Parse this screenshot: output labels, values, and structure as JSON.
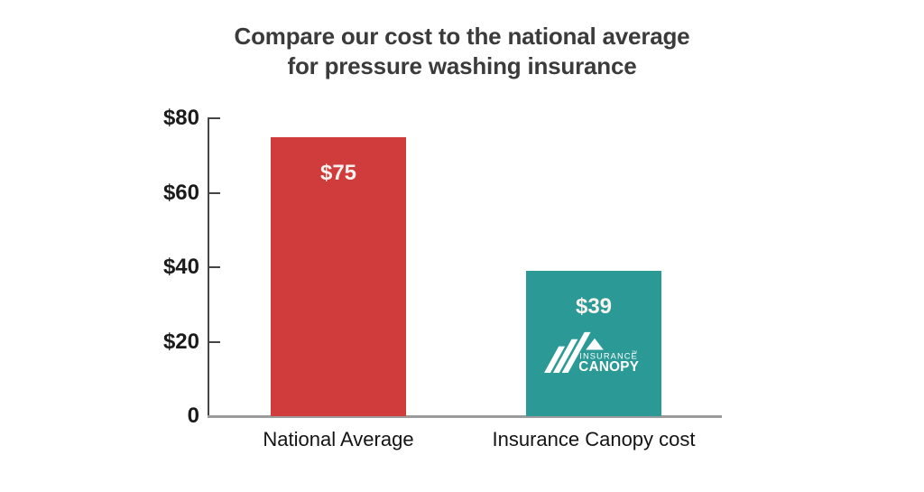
{
  "header": {
    "title_line1": "Compare our cost to the national average",
    "title_line2": "for pressure washing insurance"
  },
  "chart_data": {
    "type": "bar",
    "title": "Compare our cost to the national average for pressure washing insurance",
    "categories": [
      "National Average",
      "Insurance Canopy cost"
    ],
    "values": [
      75,
      39
    ],
    "labels": [
      "$75",
      "$39"
    ],
    "bar_colors": [
      "#d03c3c",
      "#2b9a96"
    ],
    "label_color": "#f8f2ef",
    "xlabel": "",
    "ylabel": "",
    "ylim": [
      0,
      80
    ],
    "yticks": [
      0,
      20,
      40,
      60,
      80
    ],
    "ytick_labels": [
      "0",
      "$20",
      "$40",
      "$60",
      "$80"
    ],
    "grid": false,
    "legend": false
  },
  "logo": {
    "name": "Insurance Canopy",
    "line1": "INSURANCE",
    "line2": "CANOPY",
    "trademark": "TM"
  },
  "colors": {
    "title": "#3b3b3b",
    "axis_line": "#454545",
    "baseline": "#9b9b9b",
    "tick_text": "#1b1b1b",
    "category_text": "#141414",
    "background": "#ffffff"
  }
}
